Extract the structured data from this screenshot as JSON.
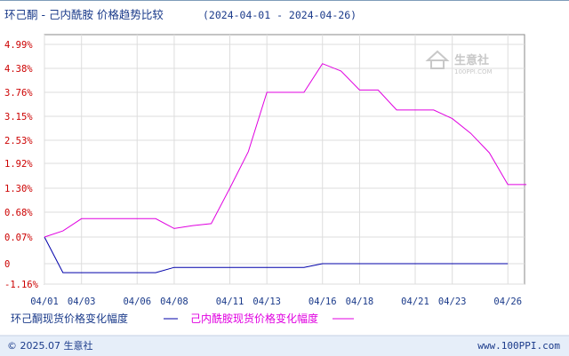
{
  "chart_data": {
    "type": "line",
    "title": "环己酮 - 己内酰胺 价格趋势比较",
    "date_range": "(2024-04-01 - 2024-04-26)",
    "x_ticks": [
      "04/01",
      "04/03",
      "04/06",
      "04/08",
      "04/11",
      "04/13",
      "04/16",
      "04/18",
      "04/21",
      "04/23",
      "04/26"
    ],
    "y_ticks": [
      {
        "value": 4.99,
        "label": "4.99%"
      },
      {
        "value": 4.38,
        "label": "4.38%"
      },
      {
        "value": 3.76,
        "label": "3.76%"
      },
      {
        "value": 3.15,
        "label": "3.15%"
      },
      {
        "value": 2.53,
        "label": "2.53%"
      },
      {
        "value": 1.92,
        "label": "1.92%"
      },
      {
        "value": 1.3,
        "label": "1.30%"
      },
      {
        "value": 0.68,
        "label": "0.68%"
      },
      {
        "value": 0.07,
        "label": "0.07%"
      },
      {
        "value": 0,
        "label": "0"
      },
      {
        "value": -1.16,
        "label": "-1.16%"
      }
    ],
    "ylim": [
      -1.16,
      4.99
    ],
    "grid": true,
    "series": [
      {
        "name": "环己酮现货价格变化幅度",
        "color": "#0000aa",
        "points": [
          [
            "04/01",
            0.07
          ],
          [
            "04/02",
            -0.51
          ],
          [
            "04/03",
            -0.51
          ],
          [
            "04/07",
            -0.51
          ],
          [
            "04/08",
            -0.21
          ],
          [
            "04/15",
            -0.21
          ],
          [
            "04/16",
            0.0
          ],
          [
            "04/26",
            0.0
          ]
        ]
      },
      {
        "name": "己内酰胺现货价格变化幅度",
        "color": "#e000e0",
        "points": [
          [
            "04/01",
            0.07
          ],
          [
            "04/02",
            0.22
          ],
          [
            "04/03",
            0.52
          ],
          [
            "04/07",
            0.52
          ],
          [
            "04/08",
            0.28
          ],
          [
            "04/09",
            0.35
          ],
          [
            "04/10",
            0.4
          ],
          [
            "04/11",
            1.3
          ],
          [
            "04/12",
            2.23
          ],
          [
            "04/13",
            3.76
          ],
          [
            "04/15",
            3.76
          ],
          [
            "04/16",
            4.5
          ],
          [
            "04/17",
            4.31
          ],
          [
            "04/18",
            3.82
          ],
          [
            "04/19",
            3.82
          ],
          [
            "04/20",
            3.31
          ],
          [
            "04/22",
            3.31
          ],
          [
            "04/23",
            3.09
          ],
          [
            "04/24",
            2.71
          ],
          [
            "04/25",
            2.2
          ],
          [
            "04/26",
            1.39
          ],
          [
            "04/27",
            1.39
          ]
        ]
      }
    ],
    "legend": [
      {
        "name": "环己酮现货价格变化幅度",
        "color": "#0000aa"
      },
      {
        "name": "己内酰胺现货价格变化幅度",
        "color": "#e000e0"
      }
    ],
    "legend_placement": "bottom-left"
  },
  "watermark": {
    "text": "生意社",
    "url": "100PPI.COM"
  },
  "footer": {
    "copyright": "© 2025.07 生意社",
    "site": "www.100PPI.com"
  }
}
